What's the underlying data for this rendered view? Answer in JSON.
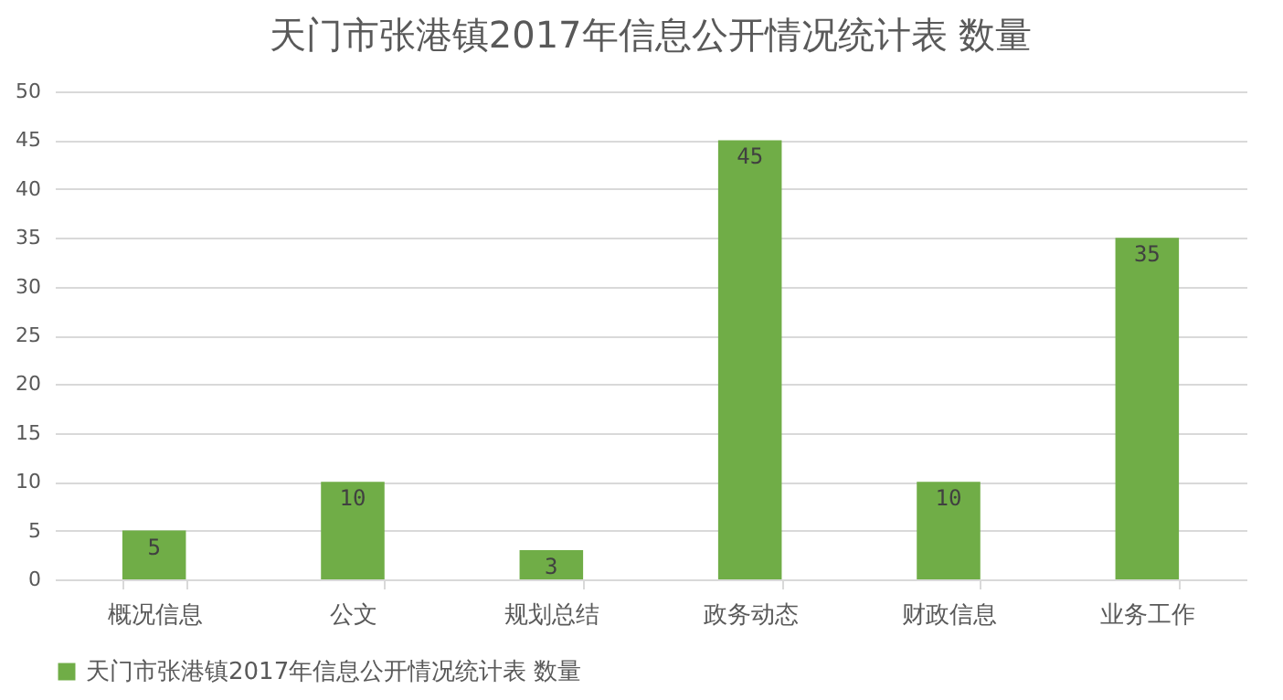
{
  "chart_data": {
    "type": "bar",
    "title": "天门市张港镇2017年信息公开情况统计表 数量",
    "categories": [
      "概况信息",
      "公文",
      "规划总结",
      "政务动态",
      "财政信息",
      "业务工作"
    ],
    "series": [
      {
        "name": "天门市张港镇2017年信息公开情况统计表 数量",
        "color": "#70ad47",
        "values": [
          5,
          10,
          3,
          45,
          10,
          35
        ]
      }
    ],
    "ylim": [
      0,
      50
    ],
    "yticks": [
      0,
      5,
      10,
      15,
      20,
      25,
      30,
      35,
      40,
      45,
      50
    ],
    "grid": "y",
    "legend": "bottom",
    "data_labels": true
  }
}
